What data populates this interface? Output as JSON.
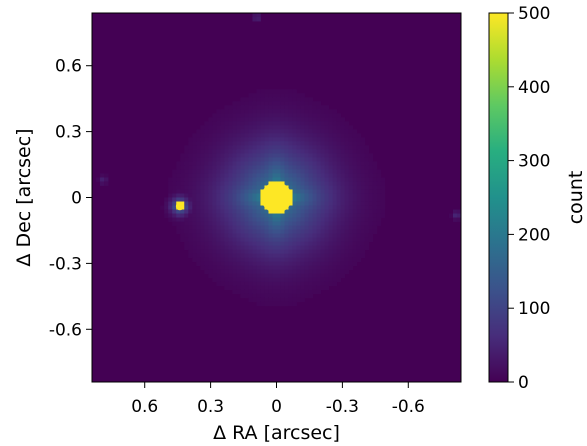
{
  "chart_data": {
    "type": "heatmap",
    "title": "",
    "xlabel": "Δ RA [arcsec]",
    "ylabel": "Δ Dec [arcsec]",
    "x_axis_inverted": true,
    "xlim": [
      0.84,
      -0.84
    ],
    "ylim": [
      -0.84,
      0.84
    ],
    "x_ticks": [
      {
        "value": 0.6,
        "label": "0.6"
      },
      {
        "value": 0.3,
        "label": "0.3"
      },
      {
        "value": 0,
        "label": "0"
      },
      {
        "value": -0.3,
        "label": "-0.3"
      },
      {
        "value": -0.6,
        "label": "-0.6"
      }
    ],
    "y_ticks": [
      {
        "value": 0.6,
        "label": "0.6"
      },
      {
        "value": 0.3,
        "label": "0.3"
      },
      {
        "value": 0,
        "label": "0"
      },
      {
        "value": -0.3,
        "label": "-0.3"
      },
      {
        "value": -0.6,
        "label": "-0.6"
      }
    ],
    "grid": false,
    "colormap": "viridis",
    "background_value": 0,
    "sources": [
      {
        "ra": 0.0,
        "dec": 0.0,
        "peak": 500,
        "core_radius": 0.07,
        "halo_radius": 0.22,
        "halo_level": 120
      },
      {
        "ra": 0.44,
        "dec": -0.04,
        "peak": 500,
        "core_radius": 0.018,
        "halo_radius": 0.035,
        "halo_level": 90
      }
    ],
    "faint_spots": [
      {
        "ra": 0.09,
        "dec": 0.82,
        "value": 50
      },
      {
        "ra": 0.79,
        "dec": 0.08,
        "value": 45
      },
      {
        "ra": -0.82,
        "dec": -0.08,
        "value": 60
      }
    ],
    "colorbar": {
      "label": "count",
      "range": [
        0,
        500
      ],
      "ticks": [
        {
          "value": 0,
          "label": "0"
        },
        {
          "value": 100,
          "label": "100"
        },
        {
          "value": 200,
          "label": "200"
        },
        {
          "value": 300,
          "label": "300"
        },
        {
          "value": 400,
          "label": "400"
        },
        {
          "value": 500,
          "label": "500"
        }
      ],
      "stops": [
        "#440154",
        "#472d7b",
        "#3b528b",
        "#2c728e",
        "#21918c",
        "#28ae80",
        "#5ec962",
        "#addc30",
        "#fde725"
      ]
    }
  }
}
